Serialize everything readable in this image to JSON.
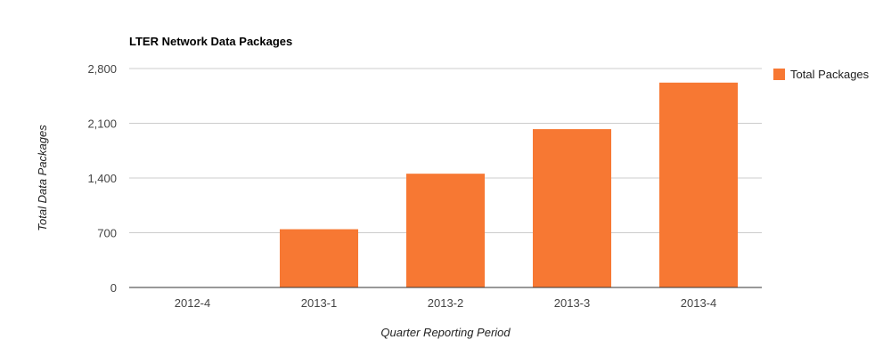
{
  "chart_data": {
    "type": "bar",
    "title": "LTER Network Data Packages",
    "xlabel": "Quarter Reporting Period",
    "ylabel": "Total Data Packages",
    "categories": [
      "2012-4",
      "2013-1",
      "2013-2",
      "2013-3",
      "2013-4"
    ],
    "series": [
      {
        "name": "Total Packages",
        "values": [
          0,
          745,
          1455,
          2025,
          2620
        ],
        "color": "#f77833"
      }
    ],
    "ylim": [
      0,
      2800
    ],
    "yticks": [
      "0",
      "700",
      "1,400",
      "2,100",
      "2,800"
    ],
    "grid": true,
    "legend_position": "right"
  }
}
